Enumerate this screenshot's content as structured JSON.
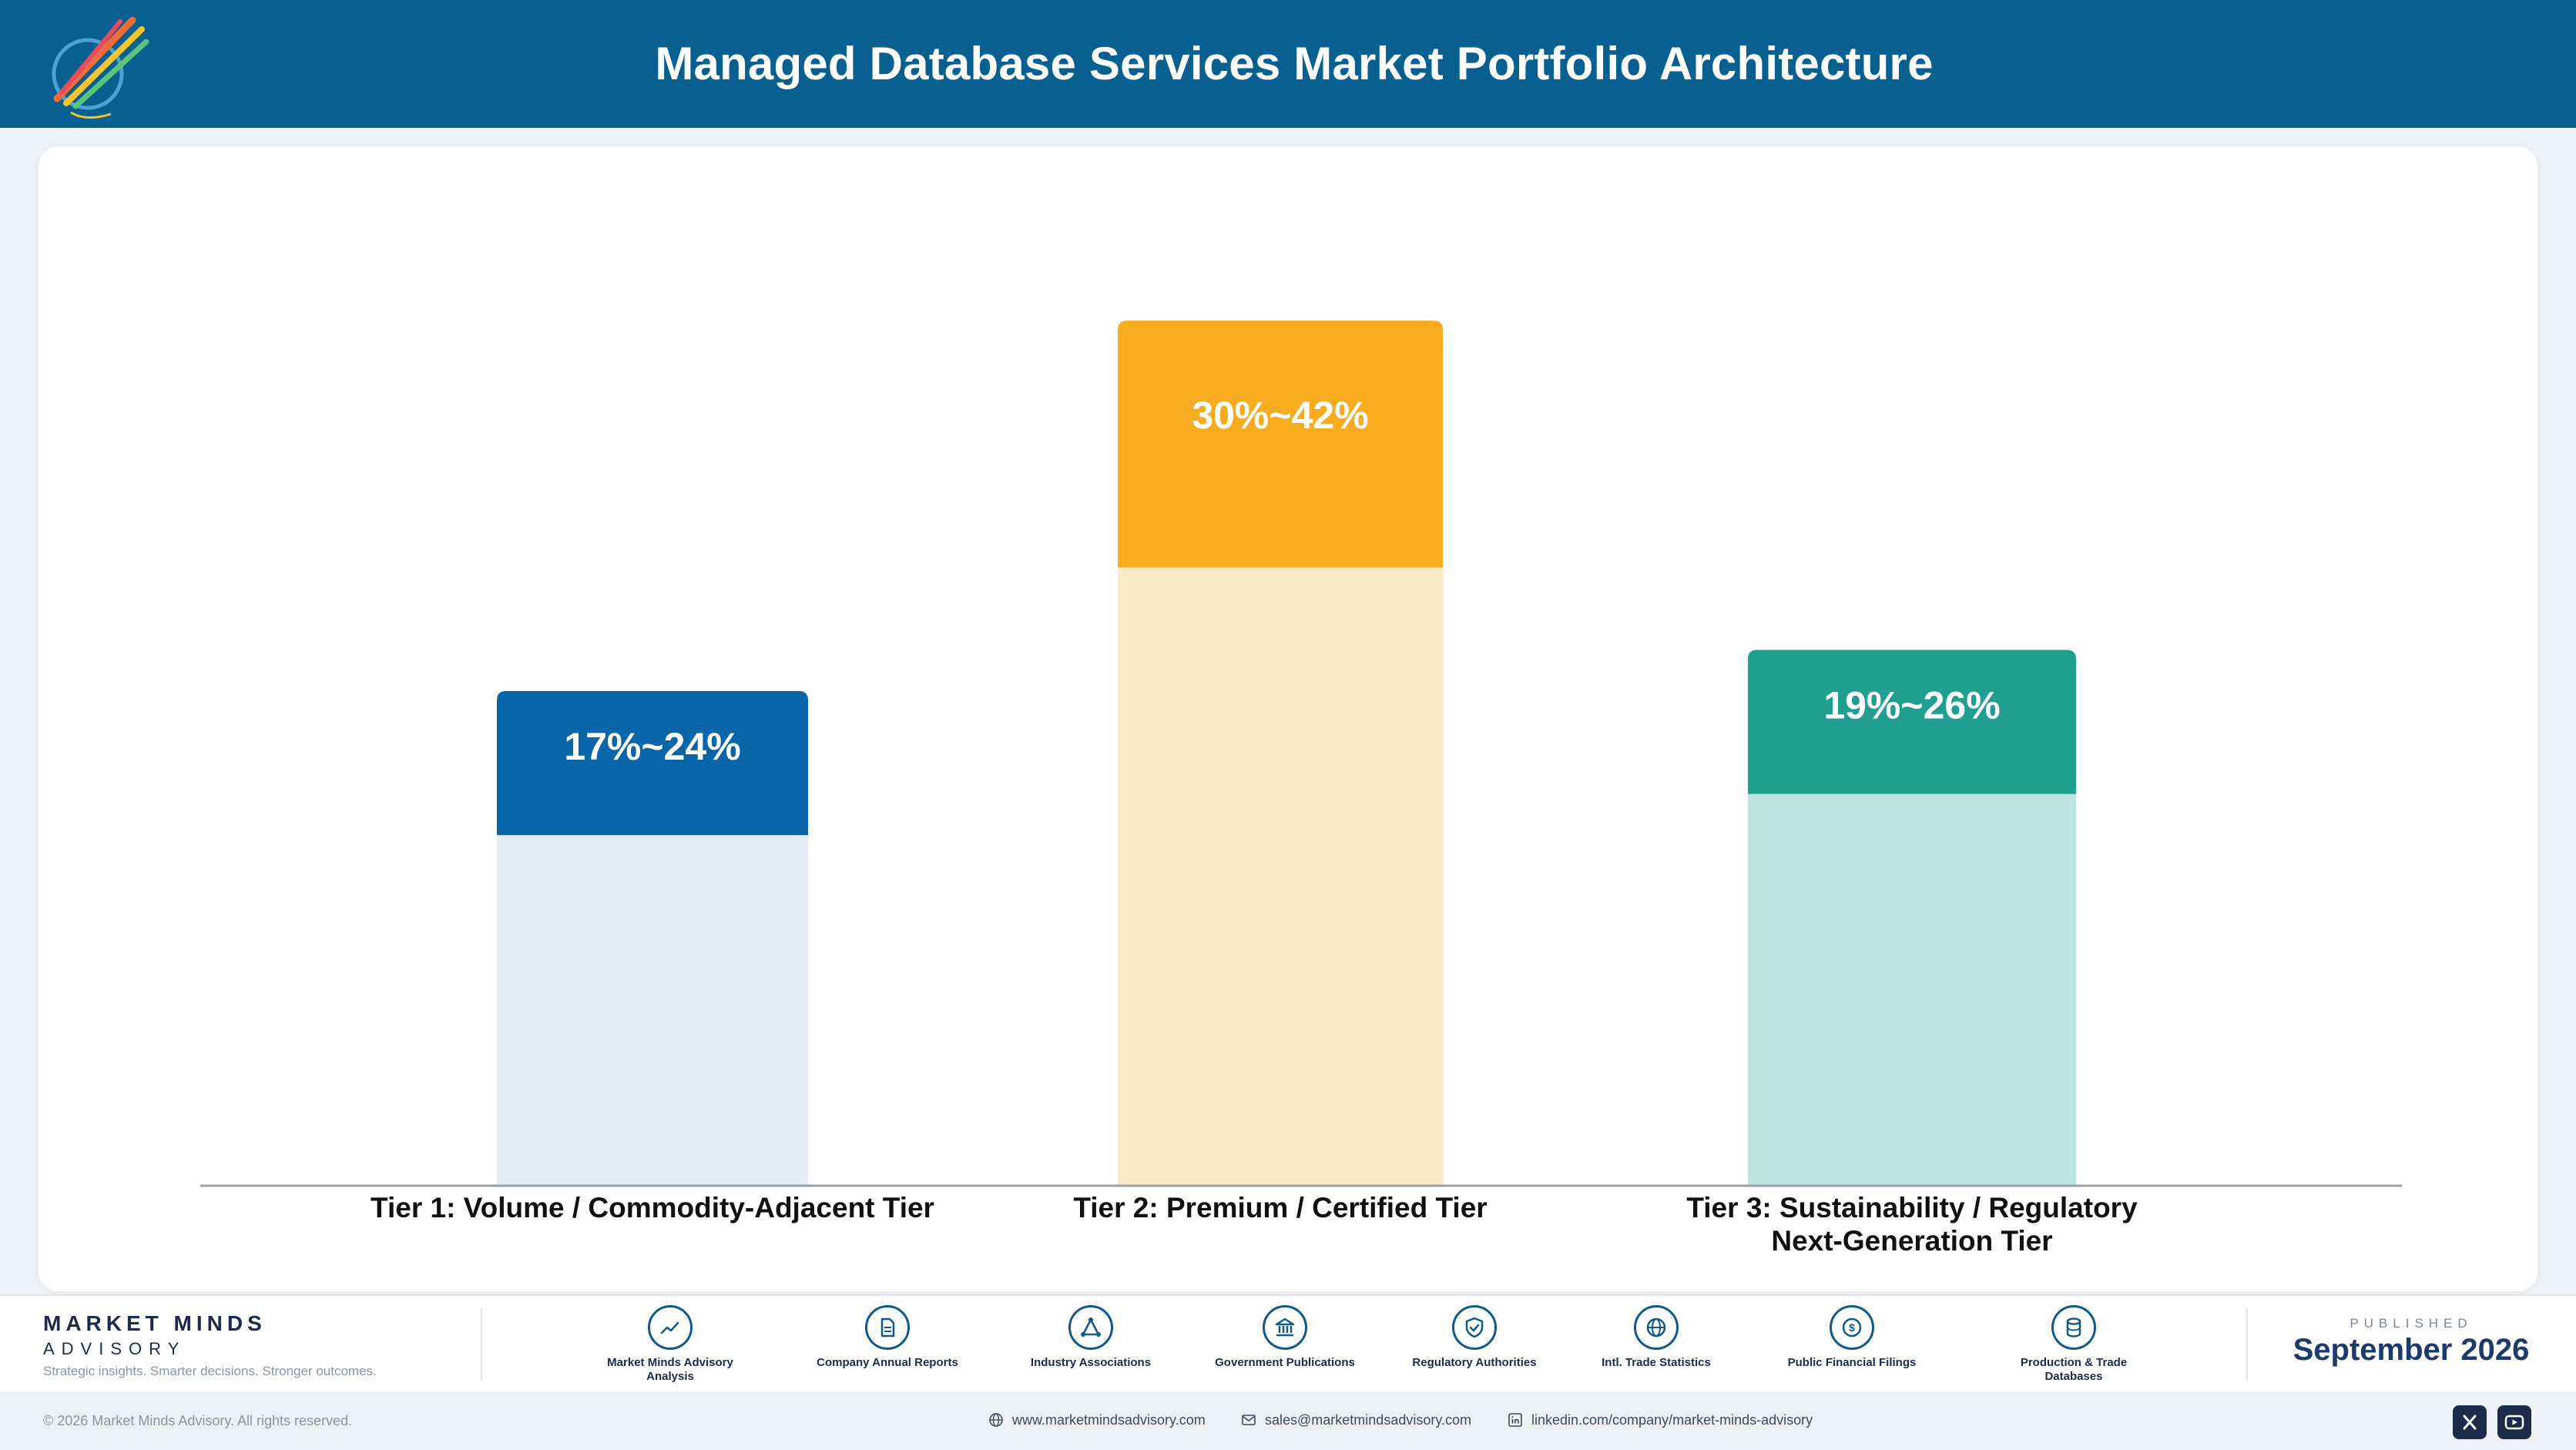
{
  "header": {
    "title": "Managed Database Services Market Portfolio Architecture",
    "logo_icon": "rocket-logo-icon"
  },
  "chart_data": {
    "type": "bar",
    "categories": [
      "Tier 1: Volume / Commodity-Adjacent Tier",
      "Tier 2: Premium / Certified Tier",
      "Tier 3: Sustainability / Regulatory Next-Generation Tier"
    ],
    "category_lines": [
      [
        "Tier 1: Volume / Commodity-Adjacent Tier"
      ],
      [
        "Tier 2: Premium / Certified Tier"
      ],
      [
        "Tier 3: Sustainability / Regulatory",
        "Next-Generation Tier"
      ]
    ],
    "data_labels": [
      "17%~24%",
      "30%~42%",
      "19%~26%"
    ],
    "ranges": [
      [
        17,
        24
      ],
      [
        30,
        42
      ],
      [
        19,
        26
      ]
    ],
    "colors": [
      "#0765a8",
      "#f7ab1e",
      "#209f91"
    ],
    "light_colors": [
      "#e3edf6",
      "#f9ebc8",
      "#c0e5e1"
    ],
    "ylim": [
      0,
      45
    ],
    "grid": false,
    "legend": "none"
  },
  "footer": {
    "brand_name": "MARKET MINDS",
    "brand_sub": "ADVISORY",
    "brand_tagline": "Strategic insights. Smarter decisions. Stronger outcomes.",
    "sources": [
      {
        "label": "Market Minds Advisory Analysis",
        "icon": "trend-chart-icon"
      },
      {
        "label": "Company Annual Reports",
        "icon": "document-icon"
      },
      {
        "label": "Industry Associations",
        "icon": "network-icon"
      },
      {
        "label": "Government Publications",
        "icon": "government-building-icon"
      },
      {
        "label": "Regulatory Authorities",
        "icon": "shield-check-icon"
      },
      {
        "label": "Intl. Trade Statistics",
        "icon": "globe-icon"
      },
      {
        "label": "Public Financial Filings",
        "icon": "currency-coin-icon"
      },
      {
        "label": "Production & Trade Databases",
        "icon": "database-icon"
      }
    ],
    "published_label": "PUBLISHED",
    "published_date": "September 2026"
  },
  "bottom": {
    "copyright": "© 2026 Market Minds Advisory. All rights reserved.",
    "website": "www.marketmindsadvisory.com",
    "email": "sales@marketmindsadvisory.com",
    "linkedin": "linkedin.com/company/market-minds-advisory",
    "social": [
      "x-icon",
      "youtube-icon"
    ]
  }
}
